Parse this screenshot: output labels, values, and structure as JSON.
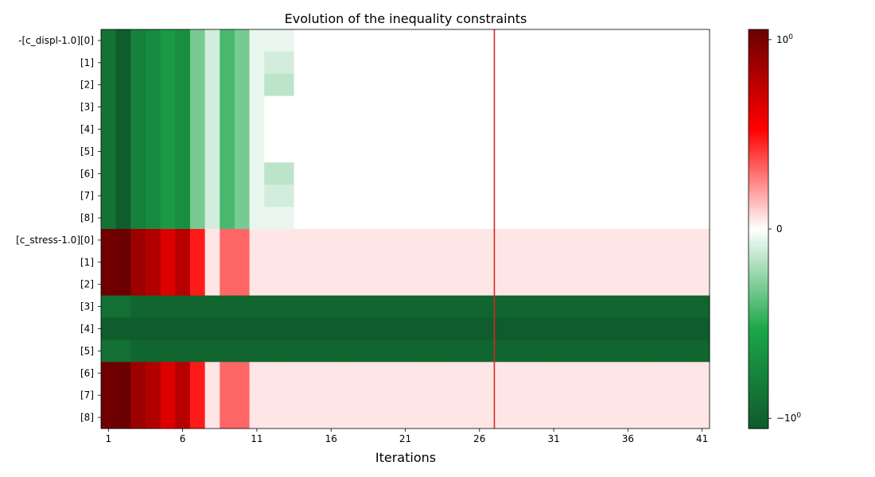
{
  "chart_data": {
    "type": "heatmap",
    "title": "Evolution of the inequality constraints",
    "xlabel": "Iterations",
    "ylabel": "",
    "x_ticks": [
      "1",
      "6",
      "11",
      "16",
      "21",
      "26",
      "31",
      "36",
      "41"
    ],
    "iterations": [
      1,
      41
    ],
    "rows": [
      "-[c_displ-1.0][0]",
      "[1]",
      "[2]",
      "[3]",
      "[4]",
      "[5]",
      "[6]",
      "[7]",
      "[8]",
      "[c_stress-1.0][0]",
      "[1]",
      "[2]",
      "[3]",
      "[4]",
      "[5]",
      "[6]",
      "[7]",
      "[8]"
    ],
    "values": [
      [
        -0.55,
        -1.2,
        -0.35,
        -0.25,
        -0.15,
        -0.22,
        -0.06,
        -0.02,
        -0.08,
        -0.06,
        -0.01,
        -0.01,
        -0.01,
        0,
        0,
        0,
        0,
        0,
        0,
        0,
        0,
        0,
        0,
        0,
        0,
        0,
        0,
        0,
        0,
        0,
        0,
        0,
        0,
        0,
        0,
        0,
        0,
        0,
        0,
        0,
        0
      ],
      [
        -0.55,
        -1.2,
        -0.35,
        -0.25,
        -0.15,
        -0.22,
        -0.06,
        -0.02,
        -0.08,
        -0.06,
        -0.01,
        -0.02,
        -0.02,
        0,
        0,
        0,
        0,
        0,
        0,
        0,
        0,
        0,
        0,
        0,
        0,
        0,
        0,
        0,
        0,
        0,
        0,
        0,
        0,
        0,
        0,
        0,
        0,
        0,
        0,
        0,
        0
      ],
      [
        -0.55,
        -1.2,
        -0.35,
        -0.25,
        -0.15,
        -0.22,
        -0.06,
        -0.02,
        -0.08,
        -0.06,
        -0.01,
        -0.03,
        -0.03,
        0,
        0,
        0,
        0,
        0,
        0,
        0,
        0,
        0,
        0,
        0,
        0,
        0,
        0,
        0,
        0,
        0,
        0,
        0,
        0,
        0,
        0,
        0,
        0,
        0,
        0,
        0,
        0
      ],
      [
        -0.55,
        -1.2,
        -0.35,
        -0.25,
        -0.15,
        -0.22,
        -0.06,
        -0.02,
        -0.08,
        -0.06,
        -0.01,
        0,
        0,
        0,
        0,
        0,
        0,
        0,
        0,
        0,
        0,
        0,
        0,
        0,
        0,
        0,
        0,
        0,
        0,
        0,
        0,
        0,
        0,
        0,
        0,
        0,
        0,
        0,
        0,
        0,
        0
      ],
      [
        -0.55,
        -1.2,
        -0.35,
        -0.25,
        -0.15,
        -0.22,
        -0.06,
        -0.02,
        -0.08,
        -0.06,
        -0.01,
        0,
        0,
        0,
        0,
        0,
        0,
        0,
        0,
        0,
        0,
        0,
        0,
        0,
        0,
        0,
        0,
        0,
        0,
        0,
        0,
        0,
        0,
        0,
        0,
        0,
        0,
        0,
        0,
        0,
        0
      ],
      [
        -0.55,
        -1.2,
        -0.35,
        -0.25,
        -0.15,
        -0.22,
        -0.06,
        -0.02,
        -0.08,
        -0.06,
        -0.01,
        0,
        0,
        0,
        0,
        0,
        0,
        0,
        0,
        0,
        0,
        0,
        0,
        0,
        0,
        0,
        0,
        0,
        0,
        0,
        0,
        0,
        0,
        0,
        0,
        0,
        0,
        0,
        0,
        0,
        0
      ],
      [
        -0.55,
        -1.2,
        -0.35,
        -0.25,
        -0.15,
        -0.22,
        -0.06,
        -0.02,
        -0.08,
        -0.06,
        -0.01,
        -0.03,
        -0.03,
        0,
        0,
        0,
        0,
        0,
        0,
        0,
        0,
        0,
        0,
        0,
        0,
        0,
        0,
        0,
        0,
        0,
        0,
        0,
        0,
        0,
        0,
        0,
        0,
        0,
        0,
        0,
        0
      ],
      [
        -0.55,
        -1.2,
        -0.35,
        -0.25,
        -0.15,
        -0.22,
        -0.06,
        -0.02,
        -0.08,
        -0.06,
        -0.01,
        -0.02,
        -0.02,
        0,
        0,
        0,
        0,
        0,
        0,
        0,
        0,
        0,
        0,
        0,
        0,
        0,
        0,
        0,
        0,
        0,
        0,
        0,
        0,
        0,
        0,
        0,
        0,
        0,
        0,
        0,
        0
      ],
      [
        -0.55,
        -1.2,
        -0.35,
        -0.25,
        -0.15,
        -0.22,
        -0.06,
        -0.02,
        -0.08,
        -0.06,
        -0.01,
        -0.01,
        -0.01,
        0,
        0,
        0,
        0,
        0,
        0,
        0,
        0,
        0,
        0,
        0,
        0,
        0,
        0,
        0,
        0,
        0,
        0,
        0,
        0,
        0,
        0,
        0,
        0,
        0,
        0,
        0,
        0
      ],
      [
        1.2,
        1.3,
        0.55,
        0.38,
        0.18,
        0.34,
        0.09,
        0.01,
        0.06,
        0.06,
        0.01,
        0.01,
        0.01,
        0.01,
        0.01,
        0.01,
        0.01,
        0.01,
        0.01,
        0.01,
        0.01,
        0.01,
        0.01,
        0.01,
        0.01,
        0.01,
        0.01,
        0.01,
        0.01,
        0.01,
        0.01,
        0.01,
        0.01,
        0.01,
        0.01,
        0.01,
        0.01,
        0.01,
        0.01,
        0.01,
        0.01
      ],
      [
        1.2,
        1.3,
        0.55,
        0.38,
        0.18,
        0.34,
        0.09,
        0.01,
        0.06,
        0.06,
        0.01,
        0.01,
        0.01,
        0.01,
        0.01,
        0.01,
        0.01,
        0.01,
        0.01,
        0.01,
        0.01,
        0.01,
        0.01,
        0.01,
        0.01,
        0.01,
        0.01,
        0.01,
        0.01,
        0.01,
        0.01,
        0.01,
        0.01,
        0.01,
        0.01,
        0.01,
        0.01,
        0.01,
        0.01,
        0.01,
        0.01
      ],
      [
        1.2,
        1.3,
        0.55,
        0.38,
        0.18,
        0.34,
        0.09,
        0.01,
        0.06,
        0.06,
        0.01,
        0.01,
        0.01,
        0.01,
        0.01,
        0.01,
        0.01,
        0.01,
        0.01,
        0.01,
        0.01,
        0.01,
        0.01,
        0.01,
        0.01,
        0.01,
        0.01,
        0.01,
        0.01,
        0.01,
        0.01,
        0.01,
        0.01,
        0.01,
        0.01,
        0.01,
        0.01,
        0.01,
        0.01,
        0.01,
        0.01
      ],
      [
        -0.62,
        -0.62,
        -0.9,
        -0.9,
        -0.9,
        -0.9,
        -0.9,
        -0.9,
        -0.9,
        -0.9,
        -0.9,
        -0.9,
        -0.9,
        -0.9,
        -0.9,
        -0.9,
        -0.9,
        -0.9,
        -0.9,
        -0.9,
        -0.9,
        -0.9,
        -0.9,
        -0.9,
        -0.9,
        -0.9,
        -0.9,
        -0.9,
        -0.9,
        -0.9,
        -0.9,
        -0.9,
        -0.9,
        -0.9,
        -0.9,
        -0.9,
        -0.9,
        -0.9,
        -0.9,
        -0.9,
        -0.9
      ],
      [
        -1.2,
        -1.2,
        -1.2,
        -1.2,
        -1.2,
        -1.2,
        -1.2,
        -1.2,
        -1.2,
        -1.2,
        -1.2,
        -1.2,
        -1.2,
        -1.2,
        -1.2,
        -1.2,
        -1.2,
        -1.2,
        -1.2,
        -1.2,
        -1.2,
        -1.2,
        -1.2,
        -1.2,
        -1.2,
        -1.2,
        -1.2,
        -1.2,
        -1.2,
        -1.2,
        -1.2,
        -1.2,
        -1.2,
        -1.2,
        -1.2,
        -1.2,
        -1.2,
        -1.2,
        -1.2,
        -1.2,
        -1.2
      ],
      [
        -0.62,
        -0.62,
        -0.9,
        -0.9,
        -0.9,
        -0.9,
        -0.9,
        -0.9,
        -0.9,
        -0.9,
        -0.9,
        -0.9,
        -0.9,
        -0.9,
        -0.9,
        -0.9,
        -0.9,
        -0.9,
        -0.9,
        -0.9,
        -0.9,
        -0.9,
        -0.9,
        -0.9,
        -0.9,
        -0.9,
        -0.9,
        -0.9,
        -0.9,
        -0.9,
        -0.9,
        -0.9,
        -0.9,
        -0.9,
        -0.9,
        -0.9,
        -0.9,
        -0.9,
        -0.9,
        -0.9,
        -0.9
      ],
      [
        1.2,
        1.3,
        0.55,
        0.38,
        0.18,
        0.34,
        0.09,
        0.01,
        0.06,
        0.06,
        0.01,
        0.01,
        0.01,
        0.01,
        0.01,
        0.01,
        0.01,
        0.01,
        0.01,
        0.01,
        0.01,
        0.01,
        0.01,
        0.01,
        0.01,
        0.01,
        0.01,
        0.01,
        0.01,
        0.01,
        0.01,
        0.01,
        0.01,
        0.01,
        0.01,
        0.01,
        0.01,
        0.01,
        0.01,
        0.01,
        0.01
      ],
      [
        1.2,
        1.3,
        0.55,
        0.38,
        0.18,
        0.34,
        0.09,
        0.01,
        0.06,
        0.06,
        0.01,
        0.01,
        0.01,
        0.01,
        0.01,
        0.01,
        0.01,
        0.01,
        0.01,
        0.01,
        0.01,
        0.01,
        0.01,
        0.01,
        0.01,
        0.01,
        0.01,
        0.01,
        0.01,
        0.01,
        0.01,
        0.01,
        0.01,
        0.01,
        0.01,
        0.01,
        0.01,
        0.01,
        0.01,
        0.01,
        0.01
      ],
      [
        1.2,
        1.3,
        0.55,
        0.38,
        0.18,
        0.34,
        0.09,
        0.01,
        0.06,
        0.06,
        0.01,
        0.01,
        0.01,
        0.01,
        0.01,
        0.01,
        0.01,
        0.01,
        0.01,
        0.01,
        0.01,
        0.01,
        0.01,
        0.01,
        0.01,
        0.01,
        0.01,
        0.01,
        0.01,
        0.01,
        0.01,
        0.01,
        0.01,
        0.01,
        0.01,
        0.01,
        0.01,
        0.01,
        0.01,
        0.01,
        0.01
      ]
    ],
    "vline_x": 27,
    "vline_color": "#d62728",
    "colorbar": {
      "ticks": [
        {
          "label": "10",
          "sup": "0",
          "value": 1
        },
        {
          "label": "0",
          "sup": "",
          "value": 0
        },
        {
          "label": "−10",
          "sup": "0",
          "value": -1
        }
      ],
      "range": [
        -1.3,
        1.3
      ],
      "symlog_linthresh": 0.1
    },
    "colors": {
      "neg_end": "#0f5a2b",
      "neg_mid": "#1ca64a",
      "pos_mid": "#ff0000",
      "pos_end": "#6b0000",
      "center": "#ffffff"
    },
    "grid": false
  }
}
